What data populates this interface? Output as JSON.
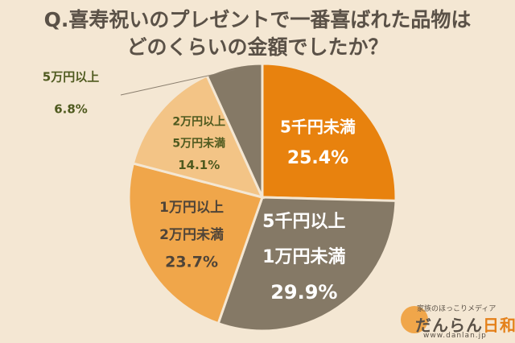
{
  "header": {
    "title_line1": "Q.喜寿祝いのプレゼントで一番喜ばれた品物は",
    "title_line2": "どのくらいの金額でしたか？"
  },
  "chart_data": {
    "type": "pie",
    "slices": [
      {
        "label_lines": [
          "5千円未満"
        ],
        "value": 25.4,
        "value_label": "25.4%",
        "color": "#e8820e",
        "text_color": "#ffffff"
      },
      {
        "label_lines": [
          "5千円以上",
          "1万円未満"
        ],
        "value": 29.9,
        "value_label": "29.9%",
        "color": "#857966",
        "text_color": "#ffffff"
      },
      {
        "label_lines": [
          "1万円以上",
          "2万円未満"
        ],
        "value": 23.7,
        "value_label": "23.7%",
        "color": "#f0a64a",
        "text_color": "#4f4438"
      },
      {
        "label_lines": [
          "2万円以上",
          "5万円未満"
        ],
        "value": 14.1,
        "value_label": "14.1%",
        "color": "#f3c486",
        "text_color": "#4f5a1f"
      },
      {
        "label_lines": [
          "5万円以上"
        ],
        "value": 6.8,
        "value_label": "6.8%",
        "color": "#857966",
        "text_color": "#4f5a1f"
      }
    ]
  },
  "logo": {
    "tagline": "家族のほっこりメディア",
    "brand_main": "だんらん",
    "brand_accent": "日和",
    "url": "www.danlan.jp"
  }
}
